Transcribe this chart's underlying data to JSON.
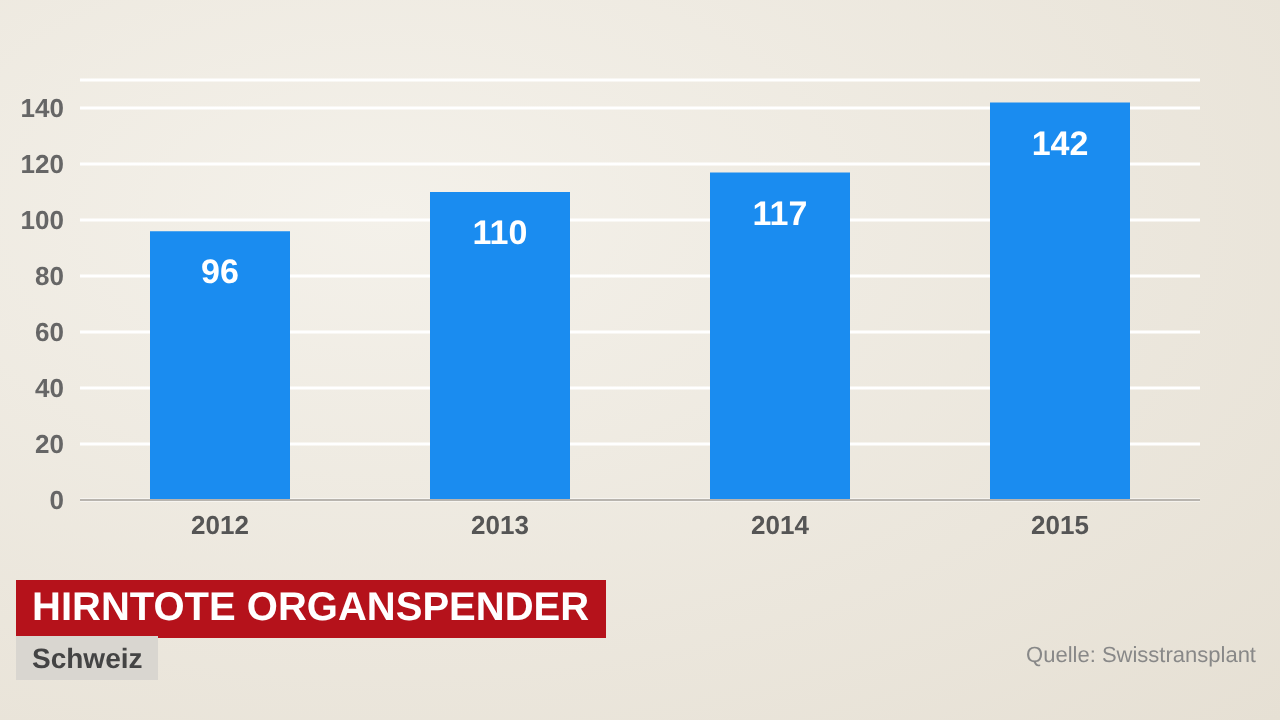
{
  "chart_data": {
    "type": "bar",
    "title": "HIRNTOTE ORGANSPENDER",
    "subtitle": "Schweiz",
    "annotations": [
      "Quelle: Swisstransplant"
    ],
    "categories": [
      "2012",
      "2013",
      "2014",
      "2015"
    ],
    "values": [
      96,
      110,
      117,
      142
    ],
    "color": "#1a8cf0",
    "ylim": [
      0,
      150
    ],
    "yticks": [
      0,
      20,
      40,
      60,
      80,
      100,
      120,
      140
    ],
    "grid": "y",
    "data_labels": true
  }
}
